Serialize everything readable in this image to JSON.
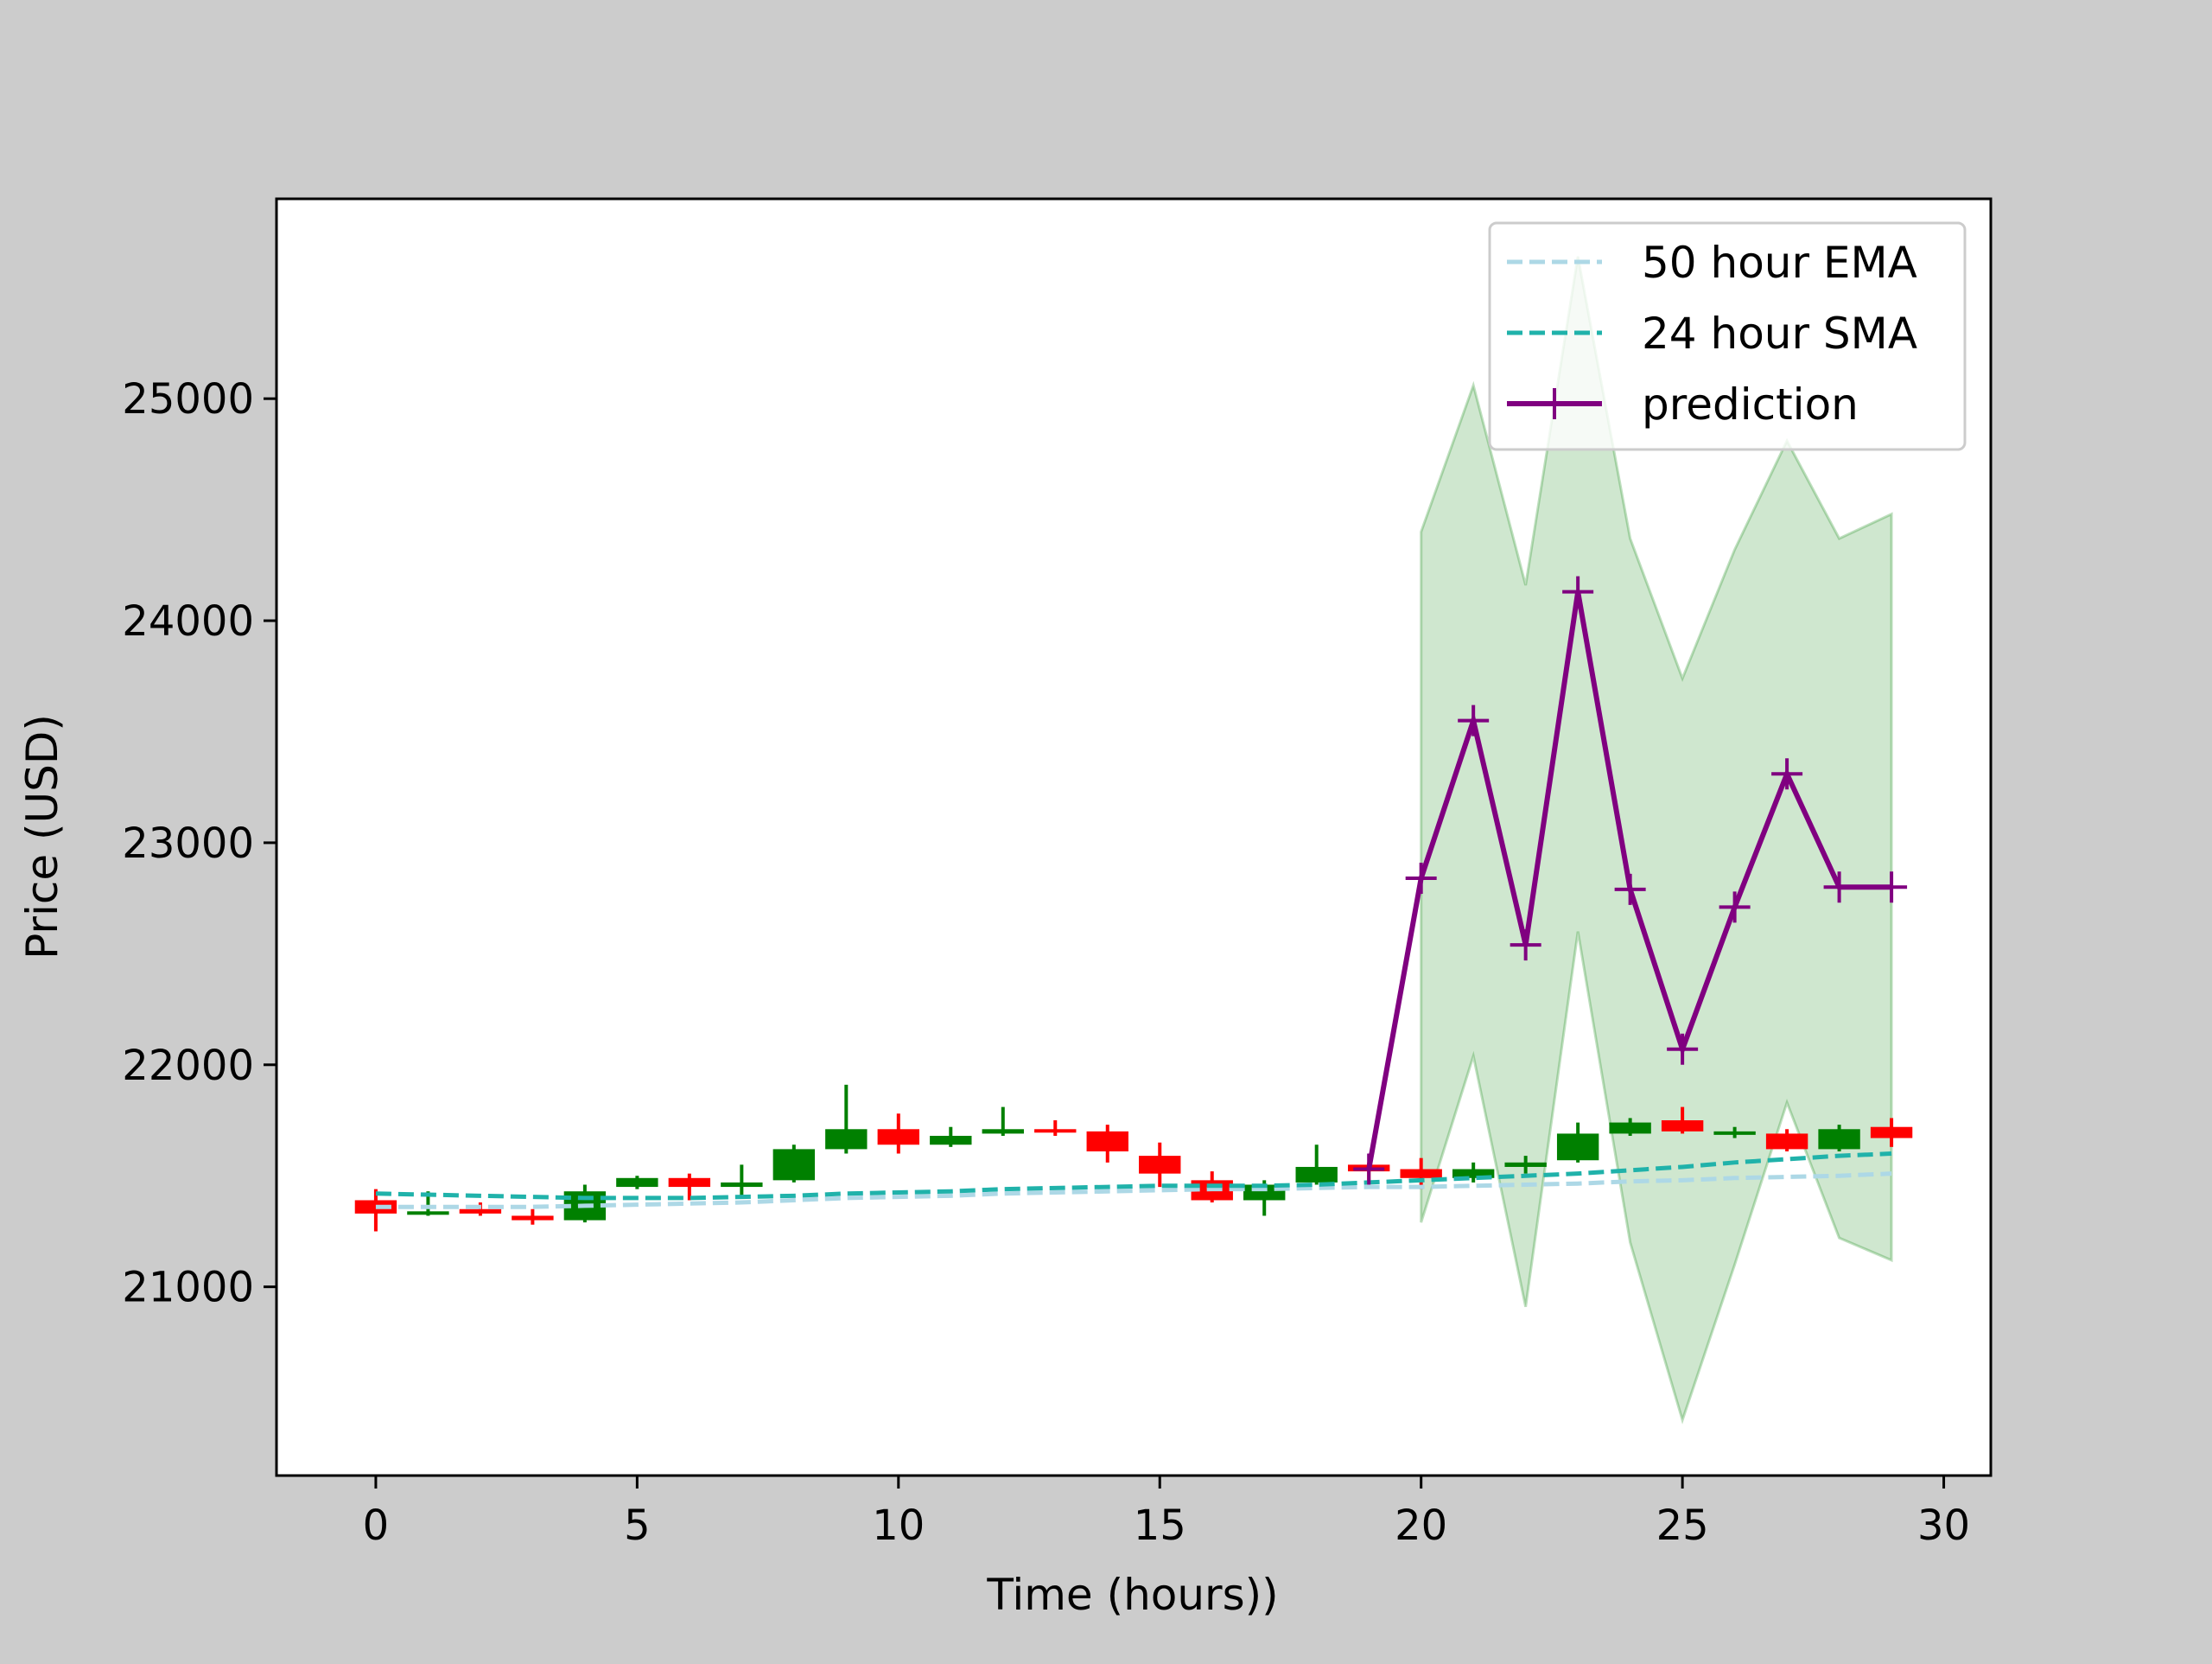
{
  "chart_data": {
    "type": "candlestick",
    "title": "",
    "xlabel": "Time (hours))",
    "ylabel": "Price (USD)",
    "xlim": [
      -1.9,
      30.9
    ],
    "ylim": [
      20150,
      25900
    ],
    "xticks": [
      0,
      5,
      10,
      15,
      20,
      25,
      30
    ],
    "yticks": [
      21000,
      22000,
      23000,
      24000,
      25000
    ],
    "legend": {
      "placement": "top-right"
    },
    "colors": {
      "up": "#008000",
      "down": "#ff0000",
      "ema": "#add8e6",
      "sma": "#20b2aa",
      "prediction": "#800080",
      "band": "#008000",
      "background": "#cccccc",
      "plot_background": "#ffffff"
    },
    "candles": [
      {
        "t": 0,
        "open": 21390,
        "high": 21440,
        "low": 21250,
        "close": 21330
      },
      {
        "t": 1,
        "open": 21330,
        "high": 21430,
        "low": 21320,
        "close": 21340
      },
      {
        "t": 2,
        "open": 21350,
        "high": 21380,
        "low": 21320,
        "close": 21330
      },
      {
        "t": 3,
        "open": 21320,
        "high": 21350,
        "low": 21280,
        "close": 21300
      },
      {
        "t": 4,
        "open": 21300,
        "high": 21460,
        "low": 21290,
        "close": 21430
      },
      {
        "t": 5,
        "open": 21450,
        "high": 21500,
        "low": 21440,
        "close": 21490
      },
      {
        "t": 6,
        "open": 21490,
        "high": 21510,
        "low": 21390,
        "close": 21450
      },
      {
        "t": 7,
        "open": 21450,
        "high": 21550,
        "low": 21410,
        "close": 21470
      },
      {
        "t": 8,
        "open": 21480,
        "high": 21640,
        "low": 21470,
        "close": 21620
      },
      {
        "t": 9,
        "open": 21620,
        "high": 21910,
        "low": 21600,
        "close": 21710
      },
      {
        "t": 10,
        "open": 21710,
        "high": 21780,
        "low": 21600,
        "close": 21640
      },
      {
        "t": 11,
        "open": 21640,
        "high": 21720,
        "low": 21630,
        "close": 21680
      },
      {
        "t": 12,
        "open": 21690,
        "high": 21810,
        "low": 21680,
        "close": 21710
      },
      {
        "t": 13,
        "open": 21710,
        "high": 21750,
        "low": 21680,
        "close": 21700
      },
      {
        "t": 14,
        "open": 21700,
        "high": 21730,
        "low": 21560,
        "close": 21610
      },
      {
        "t": 15,
        "open": 21590,
        "high": 21650,
        "low": 21450,
        "close": 21510
      },
      {
        "t": 16,
        "open": 21480,
        "high": 21520,
        "low": 21380,
        "close": 21390
      },
      {
        "t": 17,
        "open": 21390,
        "high": 21480,
        "low": 21320,
        "close": 21460
      },
      {
        "t": 18,
        "open": 21470,
        "high": 21640,
        "low": 21460,
        "close": 21540
      },
      {
        "t": 19,
        "open": 21550,
        "high": 21560,
        "low": 21470,
        "close": 21520
      },
      {
        "t": 20,
        "open": 21530,
        "high": 21580,
        "low": 21440,
        "close": 21490
      },
      {
        "t": 21,
        "open": 21490,
        "high": 21560,
        "low": 21470,
        "close": 21530
      },
      {
        "t": 22,
        "open": 21540,
        "high": 21590,
        "low": 21510,
        "close": 21560
      },
      {
        "t": 23,
        "open": 21570,
        "high": 21740,
        "low": 21560,
        "close": 21690
      },
      {
        "t": 24,
        "open": 21690,
        "high": 21760,
        "low": 21680,
        "close": 21740
      },
      {
        "t": 25,
        "open": 21750,
        "high": 21810,
        "low": 21690,
        "close": 21700
      },
      {
        "t": 26,
        "open": 21690,
        "high": 21720,
        "low": 21670,
        "close": 21700
      },
      {
        "t": 27,
        "open": 21690,
        "high": 21710,
        "low": 21610,
        "close": 21620
      },
      {
        "t": 28,
        "open": 21620,
        "high": 21730,
        "low": 21610,
        "close": 21710
      },
      {
        "t": 29,
        "open": 21720,
        "high": 21760,
        "low": 21630,
        "close": 21670
      }
    ],
    "series": [
      {
        "name": "50 hour EMA",
        "style": "dashed",
        "x": [
          0,
          1,
          2,
          3,
          4,
          5,
          6,
          7,
          8,
          9,
          10,
          11,
          12,
          13,
          14,
          15,
          16,
          17,
          18,
          19,
          20,
          21,
          22,
          23,
          24,
          25,
          26,
          27,
          28,
          29
        ],
        "y": [
          21360,
          21360,
          21360,
          21360,
          21365,
          21370,
          21375,
          21380,
          21390,
          21400,
          21405,
          21410,
          21420,
          21425,
          21430,
          21435,
          21440,
          21440,
          21445,
          21450,
          21450,
          21455,
          21460,
          21465,
          21475,
          21480,
          21490,
          21495,
          21500,
          21510
        ]
      },
      {
        "name": "24 hour SMA",
        "style": "dashed",
        "x": [
          0,
          1,
          2,
          3,
          4,
          5,
          6,
          7,
          8,
          9,
          10,
          11,
          12,
          13,
          14,
          15,
          16,
          17,
          18,
          19,
          20,
          21,
          22,
          23,
          24,
          25,
          26,
          27,
          28,
          29
        ],
        "y": [
          21420,
          21415,
          21410,
          21405,
          21400,
          21400,
          21400,
          21405,
          21410,
          21420,
          21425,
          21430,
          21440,
          21445,
          21450,
          21455,
          21455,
          21455,
          21460,
          21470,
          21480,
          21490,
          21500,
          21510,
          21525,
          21540,
          21560,
          21575,
          21590,
          21600
        ]
      },
      {
        "name": "prediction",
        "style": "solid-plus-markers",
        "x": [
          19,
          20,
          21,
          22,
          23,
          24,
          25,
          26,
          27,
          28,
          29
        ],
        "y": [
          21530,
          22840,
          23550,
          22540,
          24130,
          22790,
          22070,
          22710,
          23310,
          22800,
          22800
        ]
      }
    ],
    "band": {
      "x": [
        20,
        21,
        22,
        23,
        24,
        25,
        26,
        27,
        28,
        29
      ],
      "upper": [
        24400,
        25060,
        24160,
        25640,
        24370,
        23740,
        24320,
        24810,
        24370,
        24480
      ],
      "lower": [
        21290,
        22040,
        20910,
        22600,
        21200,
        20400,
        21100,
        21830,
        21220,
        21120
      ]
    }
  }
}
